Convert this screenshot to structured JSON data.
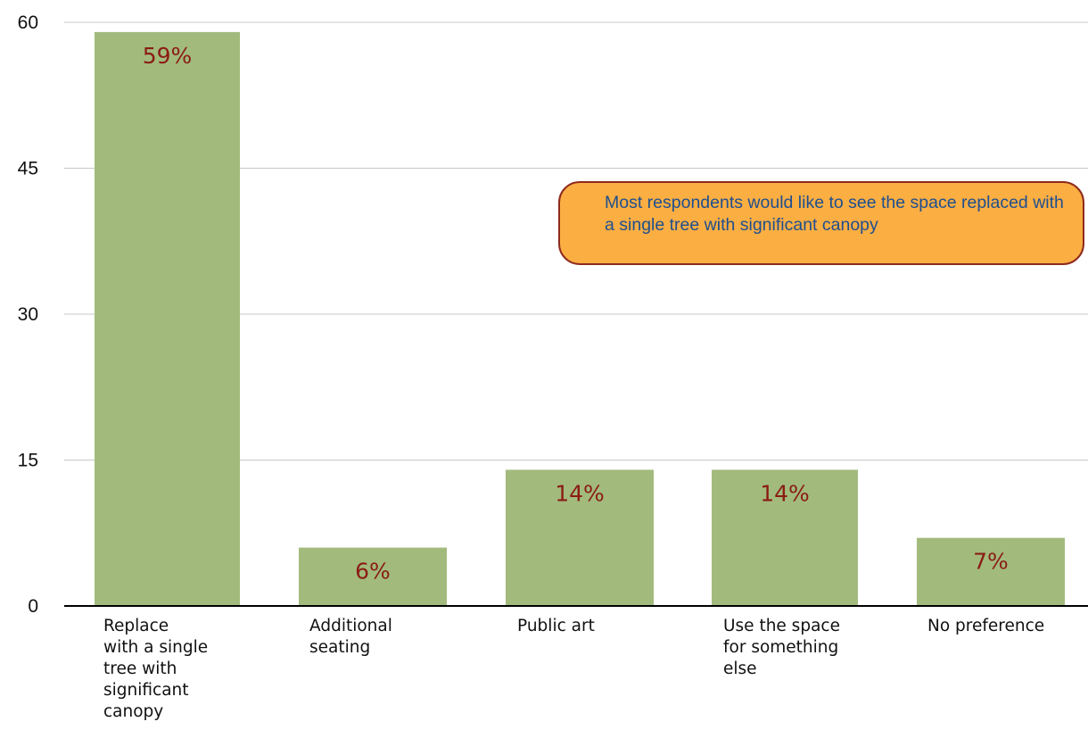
{
  "chart_data": {
    "type": "bar",
    "categories": [
      "Replace with a single tree with significant canopy",
      "Additional seating",
      "Public art",
      "Use the space for something else",
      "No preference"
    ],
    "values": [
      59,
      6,
      14,
      14,
      7
    ],
    "data_labels": [
      "59%",
      "6%",
      "14%",
      "14%",
      "7%"
    ],
    "ylim": [
      0,
      60
    ],
    "yticks": [
      0,
      15,
      30,
      45,
      60
    ],
    "ytick_labels": [
      "0",
      "15",
      "30",
      "45",
      "60"
    ],
    "grid": true,
    "legend": "none",
    "bar_color": "#a2bb7d",
    "label_color": "#8a1c14",
    "annotations": [
      {
        "text": "Most respondents would like to see the space replaced with a single tree with significant canopy"
      }
    ]
  },
  "x_labels": [
    "Replace\nwith a single\ntree with\nsignificant\ncanopy",
    "Additional\nseating",
    "Public art",
    "Use the space\nfor something\nelse",
    "No preference"
  ]
}
